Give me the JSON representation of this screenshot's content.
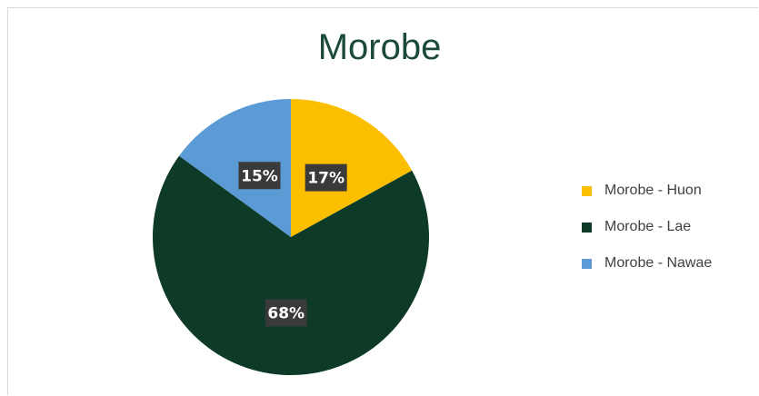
{
  "chart_data": {
    "type": "pie",
    "title": "Morobe",
    "categories": [
      "Morobe - Huon",
      "Morobe - Lae",
      "Morobe - Nawae"
    ],
    "values": [
      17,
      68,
      15
    ],
    "data_labels": [
      "17%",
      "68%",
      "15%"
    ],
    "colors": [
      "#fbbf00",
      "#0d3b28",
      "#5b9bd5"
    ],
    "legend_position": "right",
    "start_angle_deg": 0,
    "direction": "clockwise"
  }
}
